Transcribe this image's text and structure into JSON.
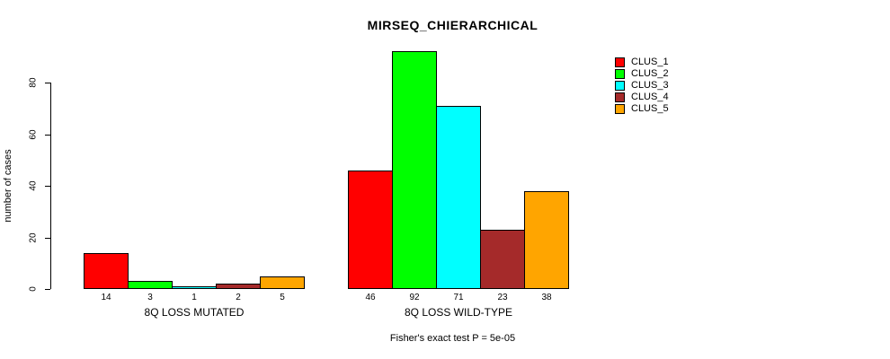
{
  "chart_data": {
    "type": "bar",
    "title": "MIRSEQ_CHIERARCHICAL",
    "ylabel": "number of cases",
    "xlabel": "",
    "yticks": [
      0,
      20,
      40,
      60,
      80
    ],
    "ylim": [
      0,
      92
    ],
    "grid": false,
    "legend_position": "top-right",
    "series": [
      {
        "name": "CLUS_1",
        "color": "#ff0000"
      },
      {
        "name": "CLUS_2",
        "color": "#00ff00"
      },
      {
        "name": "CLUS_3",
        "color": "#00ffff"
      },
      {
        "name": "CLUS_4",
        "color": "#a52a2a"
      },
      {
        "name": "CLUS_5",
        "color": "#ffa500"
      }
    ],
    "groups": [
      {
        "label": "8Q LOSS MUTATED",
        "values": [
          14,
          3,
          1,
          2,
          5
        ]
      },
      {
        "label": "8Q LOSS WILD-TYPE",
        "values": [
          46,
          92,
          71,
          23,
          38
        ]
      }
    ],
    "annotation": "Fisher's exact test P = 5e-05"
  }
}
